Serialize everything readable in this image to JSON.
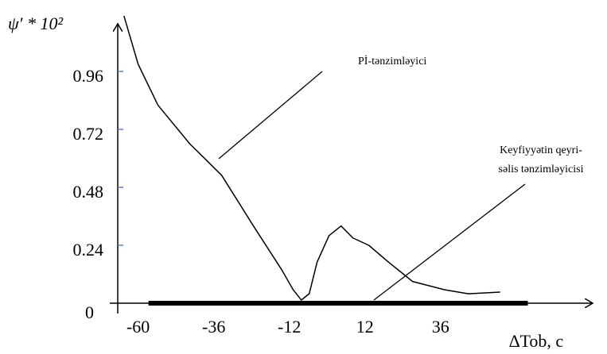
{
  "chart_data": {
    "type": "line",
    "y_label": "ψ′ * 10²",
    "x_label": "∆Tob, c",
    "xlim": [
      -69,
      81
    ],
    "ylim": [
      0,
      1.2
    ],
    "xticks": [
      -60,
      -36,
      -12,
      12,
      36
    ],
    "yticks": [
      0,
      0.24,
      0.48,
      0.72,
      0.96
    ],
    "series": [
      {
        "color": "#000000",
        "x": [
          -64.5,
          -60,
          -53.7,
          -43.6,
          -33.5,
          -23.4,
          -14.5,
          -10.8,
          -8.2,
          -5.7,
          -3.2,
          0.6,
          4.4,
          8.2,
          13.2,
          19.5,
          27.1,
          37.2,
          44.8,
          54.9
        ],
        "values": [
          1.19,
          0.99,
          0.82,
          0.66,
          0.53,
          0.32,
          0.14,
          0.056,
          0.013,
          0.039,
          0.17,
          0.28,
          0.32,
          0.27,
          0.24,
          0.17,
          0.09,
          0.056,
          0.039,
          0.046
        ]
      },
      {
        "color": "#000000",
        "x": [
          -56.7,
          63.7
        ],
        "values": [
          0,
          0
        ]
      }
    ],
    "annotations": [
      "Pİ-tənzimləyici",
      "Keyfiyyətin qeyri-",
      "səlis tənzimləyicisi"
    ]
  }
}
